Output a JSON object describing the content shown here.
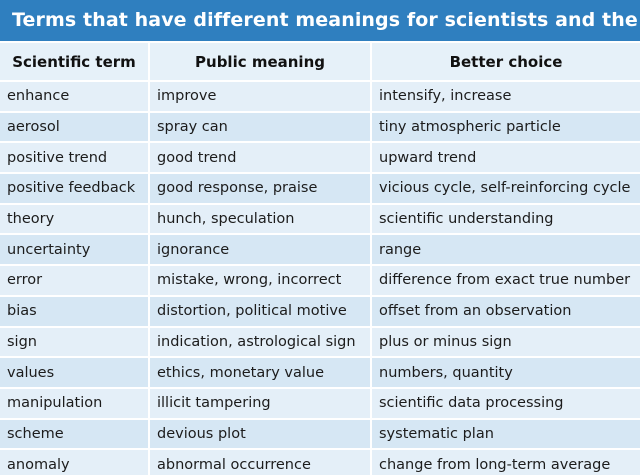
{
  "title": "Terms that have different meanings for scientists and the public",
  "columns": [
    "Scientific term",
    "Public meaning",
    "Better choice"
  ],
  "rows": [
    [
      "enhance",
      "improve",
      "intensify, increase"
    ],
    [
      "aerosol",
      "spray can",
      "tiny atmospheric particle"
    ],
    [
      "positive trend",
      "good trend",
      "upward trend"
    ],
    [
      "positive feedback",
      "good response, praise",
      "vicious cycle, self-reinforcing cycle"
    ],
    [
      "theory",
      "hunch, speculation",
      "scientific understanding"
    ],
    [
      "uncertainty",
      "ignorance",
      "range"
    ],
    [
      "error",
      "mistake, wrong, incorrect",
      "difference from exact true number"
    ],
    [
      "bias",
      "distortion, political motive",
      "offset from an observation"
    ],
    [
      "sign",
      "indication, astrological sign",
      "plus or minus sign"
    ],
    [
      "values",
      "ethics, monetary value",
      "numbers, quantity"
    ],
    [
      "manipulation",
      "illicit tampering",
      "scientific data processing"
    ],
    [
      "scheme",
      "devious plot",
      "systematic plan"
    ],
    [
      "anomaly",
      "abnormal occurrence",
      "change from long-term average"
    ]
  ],
  "colors": {
    "title_bar": "#2f7fbf",
    "row_light": "#e4eff8",
    "row_dark": "#d6e7f4"
  }
}
